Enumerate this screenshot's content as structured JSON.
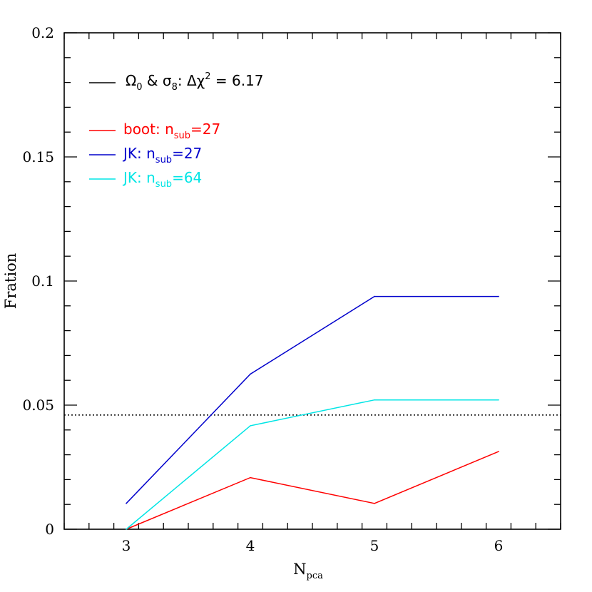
{
  "chart_data": {
    "type": "line",
    "xlabel": "N",
    "xlabel_sub": "pca",
    "ylabel": "Fration",
    "xlim": [
      2.5,
      6.5
    ],
    "ylim": [
      0,
      0.2
    ],
    "xticks": [
      3,
      4,
      5,
      6
    ],
    "xtick_labels": [
      "3",
      "4",
      "5",
      "6"
    ],
    "yticks": [
      0,
      0.05,
      0.1,
      0.15,
      0.2
    ],
    "ytick_labels": [
      "0",
      "0.05",
      "0.1",
      "0.15",
      "0.2"
    ],
    "reference_line": {
      "y": 0.046,
      "style": "dotted",
      "color": "#000000"
    },
    "legend_header": {
      "color": "#000000",
      "omega": "Ω",
      "omega_sub": "0",
      "amp": " & ",
      "sigma": "σ",
      "sigma_sub": "8",
      "colon": ": ",
      "delta_chi": "Δχ",
      "chi_sup": "2",
      "equals": " = ",
      "value": "6.17"
    },
    "series": [
      {
        "name_prefix": "boot: n",
        "name_sub": "sub",
        "name_suffix": "=27",
        "color": "#ff0000",
        "x": [
          3,
          4,
          5,
          6
        ],
        "values": [
          0.0,
          0.0208,
          0.0104,
          0.0313
        ]
      },
      {
        "name_prefix": "JK: n",
        "name_sub": "sub",
        "name_suffix": "=27",
        "color": "#0000cc",
        "x": [
          3,
          4,
          5,
          6
        ],
        "values": [
          0.0104,
          0.0625,
          0.0938,
          0.0938
        ]
      },
      {
        "name_prefix": "JK: n",
        "name_sub": "sub",
        "name_suffix": "=64",
        "color": "#00e5e5",
        "x": [
          3,
          4,
          5,
          6
        ],
        "values": [
          0.0,
          0.0417,
          0.0521,
          0.0521
        ]
      }
    ],
    "grid": false,
    "legend_position": "top-left"
  }
}
